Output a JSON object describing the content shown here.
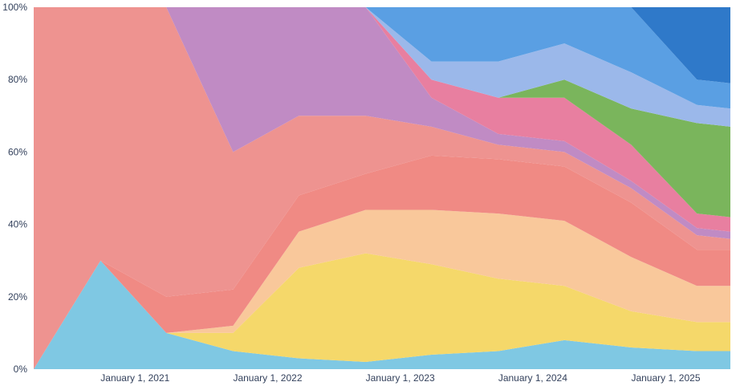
{
  "chart_data": {
    "type": "area",
    "stacking": "percent",
    "title": "",
    "xlabel": "",
    "ylabel": "",
    "ylim": [
      0,
      100
    ],
    "grid": false,
    "legend": "none",
    "x_range": [
      "2020-07-01",
      "2025-10-01"
    ],
    "y_ticks": [
      {
        "value": 0,
        "label": "0%"
      },
      {
        "value": 20,
        "label": "20%"
      },
      {
        "value": 40,
        "label": "40%"
      },
      {
        "value": 60,
        "label": "60%"
      },
      {
        "value": 80,
        "label": "80%"
      },
      {
        "value": 100,
        "label": "100%"
      }
    ],
    "x_ticks": [
      {
        "date": "2021-01-01",
        "label": "January 1, 2021"
      },
      {
        "date": "2022-01-01",
        "label": "January 1, 2022"
      },
      {
        "date": "2023-01-01",
        "label": "January 1, 2023"
      },
      {
        "date": "2024-01-01",
        "label": "January 1, 2024"
      },
      {
        "date": "2025-01-01",
        "label": "January 1, 2025"
      }
    ],
    "x": [
      "2020-07-01",
      "2021-01-01",
      "2021-07-01",
      "2022-01-01",
      "2022-07-01",
      "2023-01-01",
      "2023-07-01",
      "2024-01-01",
      "2024-07-01",
      "2025-01-01",
      "2025-07-01",
      "2025-10-01"
    ],
    "series": [
      {
        "color": "#7fc8e3",
        "values": [
          0,
          30,
          10,
          5,
          3,
          2,
          4,
          5,
          8,
          6,
          5,
          5
        ]
      },
      {
        "color": "#f5d86a",
        "values": [
          0,
          0,
          0,
          5,
          25,
          30,
          25,
          20,
          15,
          10,
          8,
          8
        ]
      },
      {
        "color": "#f9c89b",
        "values": [
          0,
          0,
          0,
          2,
          10,
          12,
          15,
          18,
          18,
          15,
          10,
          10
        ]
      },
      {
        "color": "#f08a84",
        "values": [
          0,
          0,
          10,
          10,
          10,
          10,
          15,
          15,
          15,
          15,
          10,
          10
        ]
      },
      {
        "color": "#ee9390",
        "values": [
          100,
          70,
          80,
          38,
          22,
          16,
          8,
          4,
          4,
          4,
          4,
          3
        ]
      },
      {
        "color": "#c08bc4",
        "values": [
          0,
          0,
          0,
          40,
          30,
          30,
          8,
          3,
          3,
          2,
          2,
          2
        ]
      },
      {
        "color": "#e87fa0",
        "values": [
          0,
          0,
          0,
          0,
          0,
          0,
          5,
          10,
          12,
          10,
          4,
          4
        ]
      },
      {
        "color": "#7ab55c",
        "values": [
          0,
          0,
          0,
          0,
          0,
          0,
          0,
          0,
          5,
          10,
          25,
          25
        ]
      },
      {
        "color": "#9bb8ea",
        "values": [
          0,
          0,
          0,
          0,
          0,
          0,
          5,
          10,
          10,
          10,
          5,
          5
        ]
      },
      {
        "color": "#5a9fe3",
        "values": [
          0,
          0,
          0,
          0,
          0,
          0,
          15,
          15,
          10,
          18,
          7,
          7
        ]
      },
      {
        "color": "#2f79c9",
        "values": [
          0,
          0,
          0,
          0,
          0,
          0,
          0,
          0,
          0,
          0,
          20,
          21
        ]
      }
    ]
  }
}
